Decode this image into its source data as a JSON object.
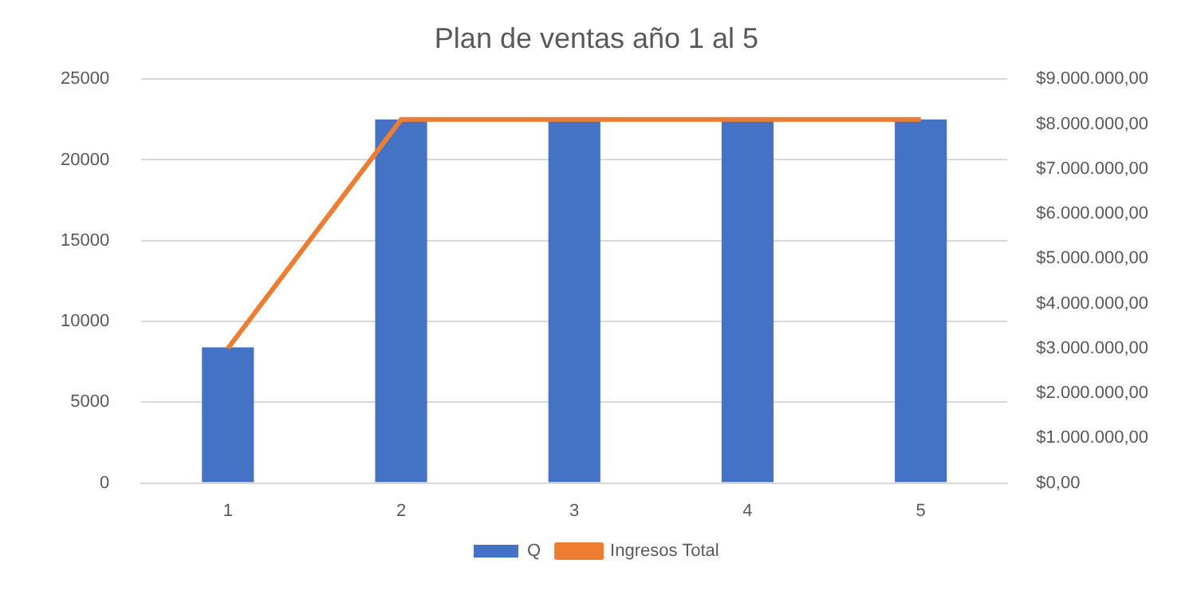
{
  "chart_data": {
    "type": "bar",
    "title": "Plan de ventas año 1 al 5",
    "categories": [
      "1",
      "2",
      "3",
      "4",
      "5"
    ],
    "series": [
      {
        "name": "Q",
        "color": "#4472c4",
        "values": [
          8400,
          22500,
          22500,
          22500,
          22500
        ]
      },
      {
        "name": "Ingresos Total",
        "type": "line",
        "axis": "y2",
        "color": "#ed7d31",
        "values": [
          3000000,
          8100000,
          8100000,
          8100000,
          8100000
        ]
      }
    ],
    "ylim": [
      0,
      25000
    ],
    "yticks": [
      0,
      5000,
      10000,
      15000,
      20000,
      25000
    ],
    "y2lim": [
      0,
      9000000
    ],
    "y2ticks": [
      {
        "value": 0,
        "label": "$0,00"
      },
      {
        "value": 1000000,
        "label": "$1.000.000,00"
      },
      {
        "value": 2000000,
        "label": "$2.000.000,00"
      },
      {
        "value": 3000000,
        "label": "$3.000.000,00"
      },
      {
        "value": 4000000,
        "label": "$4.000.000,00"
      },
      {
        "value": 5000000,
        "label": "$5.000.000,00"
      },
      {
        "value": 6000000,
        "label": "$6.000.000,00"
      },
      {
        "value": 7000000,
        "label": "$7.000.000,00"
      },
      {
        "value": 8000000,
        "label": "$8.000.000,00"
      },
      {
        "value": 9000000,
        "label": "$9.000.000,00"
      }
    ],
    "grid": "y",
    "legend": "bottom",
    "marker": "none"
  }
}
